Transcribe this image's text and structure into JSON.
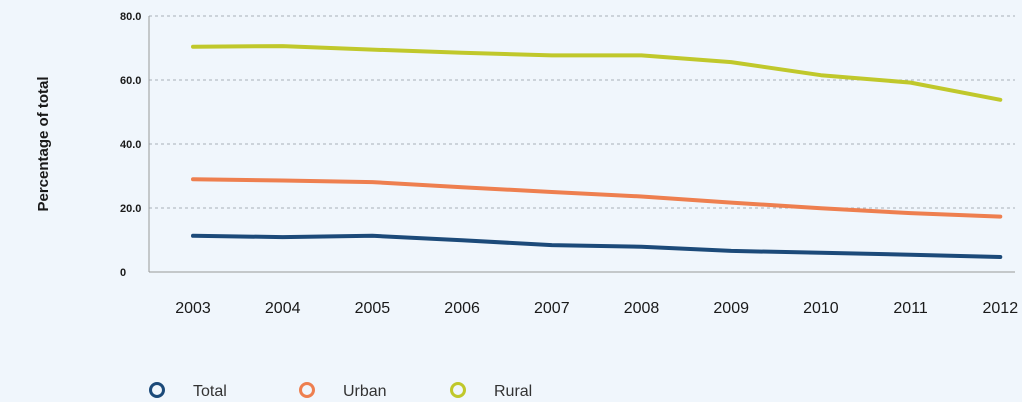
{
  "chart_data": {
    "type": "line",
    "title": "",
    "xlabel": "",
    "ylabel": "Percentage of total",
    "ylim": [
      0,
      80
    ],
    "y_ticks": [
      "0",
      "20.0",
      "40.0",
      "60.0",
      "80.0"
    ],
    "y_tick_values": [
      0,
      20,
      40,
      60,
      80
    ],
    "grid": true,
    "legend_position": "bottom-left",
    "categories": [
      "2003",
      "2004",
      "2005",
      "2006",
      "2007",
      "2008",
      "2009",
      "2010",
      "2011",
      "2012"
    ],
    "series": [
      {
        "name": "Total",
        "color": "#1c4a79",
        "values": [
          11.3,
          10.9,
          11.3,
          9.9,
          8.4,
          7.9,
          6.6,
          6.0,
          5.4,
          4.7
        ]
      },
      {
        "name": "Urban",
        "color": "#ee7f4f",
        "values": [
          29.0,
          28.6,
          28.1,
          26.5,
          25.0,
          23.6,
          21.7,
          19.9,
          18.4,
          17.3
        ]
      },
      {
        "name": "Rural",
        "color": "#c0c82b",
        "values": [
          70.4,
          70.6,
          69.5,
          68.5,
          67.7,
          67.7,
          65.6,
          61.5,
          59.2,
          53.8
        ]
      }
    ]
  }
}
